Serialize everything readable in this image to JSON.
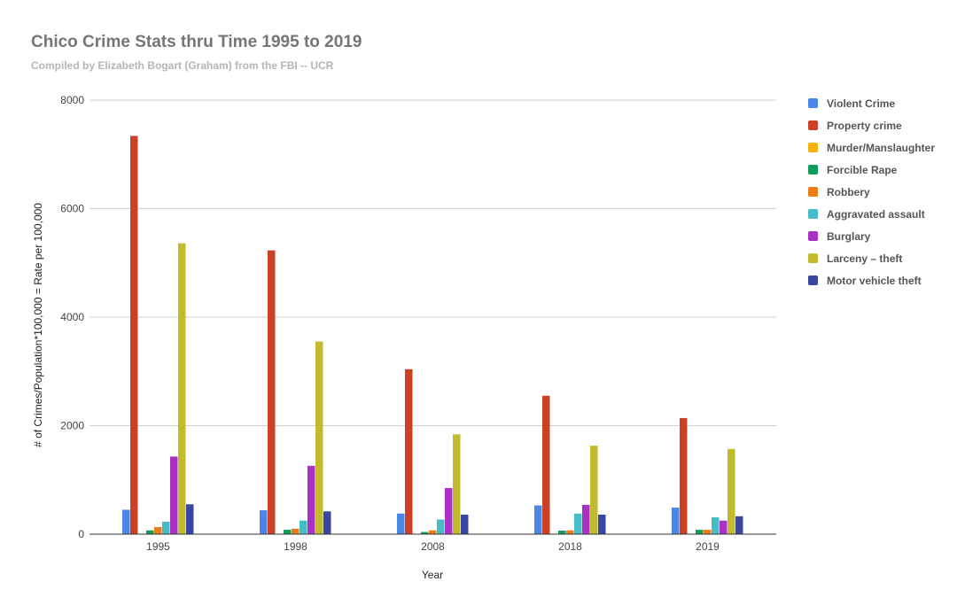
{
  "chart_data": {
    "type": "bar",
    "title": "Chico Crime Stats thru Time 1995 to 2019",
    "subtitle": "Compiled by Elizabeth Bogart (Graham) from the FBI -- UCR",
    "xlabel": "Year",
    "ylabel": "# of Crimes/Population*100,000 = Rate per 100,000",
    "ylim": [
      0,
      8000
    ],
    "yticks": [
      "0",
      "2000",
      "4000",
      "6000",
      "8000"
    ],
    "grid": true,
    "legend_position": "right",
    "categories": [
      "1995",
      "1998",
      "2008",
      "2018",
      "2019"
    ],
    "series": [
      {
        "name": "Violent Crime",
        "color": "#4a86e8",
        "values": [
          450,
          440,
          380,
          530,
          490
        ]
      },
      {
        "name": "Property crime",
        "color": "#cc4125",
        "values": [
          7340,
          5230,
          3040,
          2550,
          2140
        ]
      },
      {
        "name": "Murder/Manslaughter",
        "color": "#f1b40a",
        "values": [
          5,
          4,
          3,
          5,
          5
        ]
      },
      {
        "name": "Forcible Rape",
        "color": "#109d59",
        "values": [
          70,
          80,
          40,
          65,
          80
        ]
      },
      {
        "name": "Robbery",
        "color": "#ef7b16",
        "values": [
          130,
          100,
          70,
          70,
          80
        ]
      },
      {
        "name": "Aggravated assault",
        "color": "#46bdc6",
        "values": [
          230,
          250,
          270,
          380,
          310
        ]
      },
      {
        "name": "Burglary",
        "color": "#ab30c4",
        "values": [
          1430,
          1260,
          850,
          540,
          250
        ]
      },
      {
        "name": "Larceny – theft",
        "color": "#c2bb2c",
        "values": [
          5360,
          3550,
          1840,
          1630,
          1570
        ]
      },
      {
        "name": "Motor vehicle theft",
        "color": "#3a47a2",
        "values": [
          550,
          420,
          360,
          360,
          330
        ]
      }
    ]
  }
}
